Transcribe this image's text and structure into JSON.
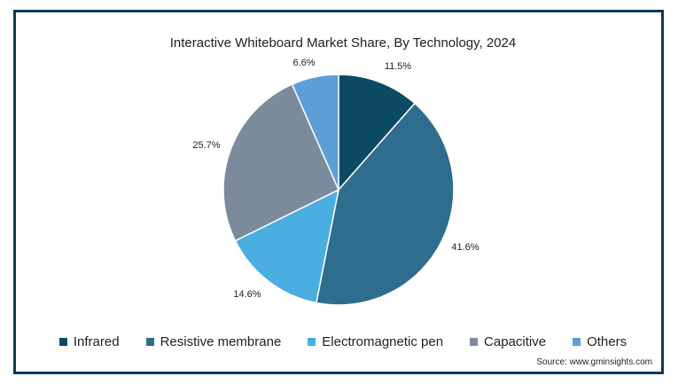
{
  "chart_data": {
    "type": "pie",
    "title": "Interactive Whiteboard Market Share, By Technology, 2024",
    "slices": [
      {
        "name": "Infrared",
        "value": 11.5,
        "label": "11.5%",
        "color": "#0b4a62"
      },
      {
        "name": "Resistive membrane",
        "value": 41.6,
        "label": "41.6%",
        "color": "#2f6d8f"
      },
      {
        "name": "Electromagnetic pen",
        "value": 14.6,
        "label": "14.6%",
        "color": "#4aaee0"
      },
      {
        "name": "Capacitive",
        "value": 25.7,
        "label": "25.7%",
        "color": "#7b8b9c"
      },
      {
        "name": "Others",
        "value": 6.6,
        "label": "6.6%",
        "color": "#5c9fd6"
      }
    ],
    "legend_position": "bottom",
    "source": "Source: www.gminsights.com"
  }
}
